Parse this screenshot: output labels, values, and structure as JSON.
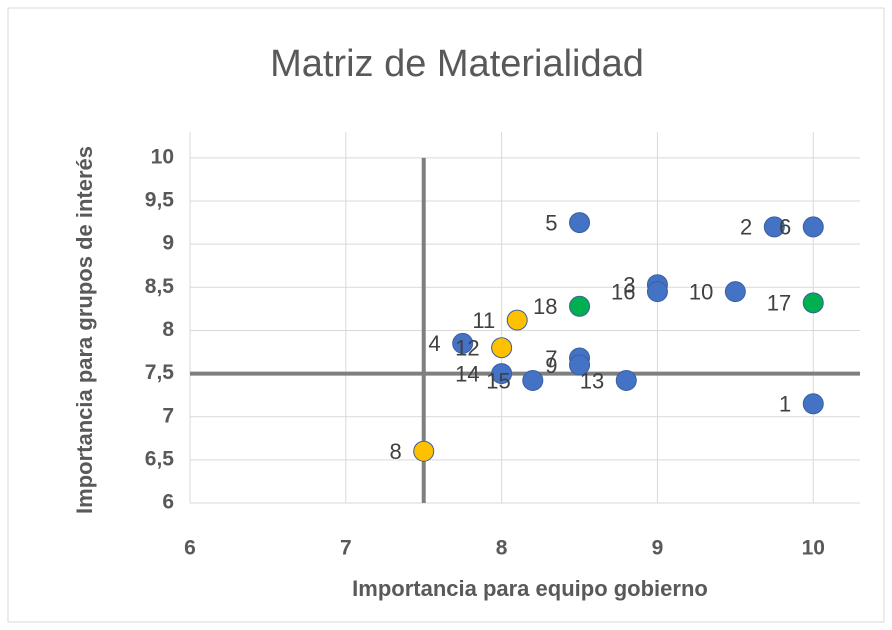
{
  "chart_data": {
    "type": "scatter",
    "title": "Matriz de Materialidad",
    "x_label": "Importancia para equipo gobierno",
    "y_label": "Importancia para grupos de interés",
    "x": [
      10,
      9.75,
      9,
      7.75,
      8.5,
      10,
      8.5,
      7.5,
      8.5,
      9.5,
      8.1,
      8,
      8.8,
      8,
      8.2,
      9,
      10,
      8.5
    ],
    "y": [
      7.15,
      9.2,
      8.53,
      7.85,
      9.25,
      9.2,
      7.68,
      6.6,
      7.6,
      8.45,
      8.12,
      7.8,
      7.42,
      7.5,
      7.42,
      8.45,
      8.32,
      8.28
    ],
    "point_labels": [
      "1",
      "2",
      "3",
      "4",
      "5",
      "6",
      "7",
      "8",
      "9",
      "10",
      "11",
      "12",
      "13",
      "14",
      "15",
      "16",
      "17",
      "18"
    ],
    "colors": [
      "#4472c4",
      "#4472c4",
      "#4472c4",
      "#4472c4",
      "#4472c4",
      "#4472c4",
      "#4472c4",
      "#ffc000",
      "#4472c4",
      "#4472c4",
      "#ffc000",
      "#ffc000",
      "#4472c4",
      "#4472c4",
      "#4472c4",
      "#4472c4",
      "#00b050",
      "#00b050"
    ],
    "xlim": [
      6,
      10.3
    ],
    "ylim": [
      6,
      10.3
    ],
    "xticks": [
      6,
      7,
      8,
      9,
      10
    ],
    "yticks": [
      6,
      {
        "value": 6.5,
        "label": "6,5"
      },
      7,
      {
        "value": 7.5,
        "label": "7,5"
      },
      8,
      {
        "value": 8.5,
        "label": "8,5"
      },
      9,
      {
        "value": 9.5,
        "label": "9,5"
      },
      10
    ],
    "reference_lines": {
      "x": 7.5,
      "y": 7.5
    },
    "grid": true
  }
}
